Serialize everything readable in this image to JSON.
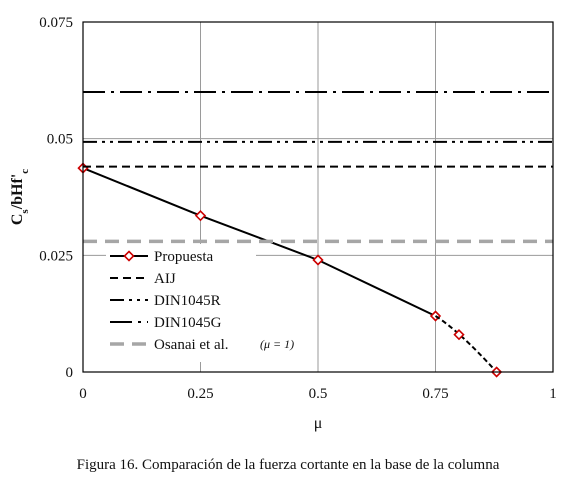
{
  "caption": "Figura 16. Comparación de la fuerza cortante en la base de la columna",
  "chart_data": {
    "type": "line",
    "title": "",
    "xlabel": "μ",
    "ylabel": "Cs/bHf'c",
    "xlim": [
      0,
      1
    ],
    "ylim": [
      0,
      0.075
    ],
    "x_ticks": [
      "0",
      "0.25",
      "0.5",
      "0.75",
      "1"
    ],
    "y_ticks": [
      "0",
      "0.025",
      "0.05",
      "0.075"
    ],
    "grid": true,
    "legend_position": "bottom-left",
    "series": [
      {
        "name": "Propuesta",
        "style": "solid-marker",
        "color": "#000000",
        "marker_color": "#cc0000",
        "x": [
          0,
          0.25,
          0.5,
          0.75
        ],
        "y": [
          0.0437,
          0.0335,
          0.024,
          0.012
        ]
      },
      {
        "name": "",
        "style": "dashed-marker",
        "color": "#000000",
        "marker_color": "#cc0000",
        "x": [
          0.75,
          0.8,
          0.88
        ],
        "y": [
          0.012,
          0.008,
          0.0
        ]
      },
      {
        "name": "AIJ",
        "style": "dashed",
        "color": "#000000",
        "x": [
          0,
          1
        ],
        "y": [
          0.044,
          0.044
        ]
      },
      {
        "name": "DIN1045R",
        "style": "dash-dot-dot",
        "color": "#000000",
        "x": [
          0,
          1
        ],
        "y": [
          0.0493,
          0.0493
        ]
      },
      {
        "name": "DIN1045G",
        "style": "dash-dot",
        "color": "#000000",
        "x": [
          0,
          1
        ],
        "y": [
          0.06,
          0.06
        ]
      },
      {
        "name": "Osanai et al.",
        "note": "(μ = 1)",
        "style": "dashed-thick",
        "color": "#a6a6a6",
        "x": [
          0,
          1
        ],
        "y": [
          0.028,
          0.028
        ]
      }
    ]
  }
}
